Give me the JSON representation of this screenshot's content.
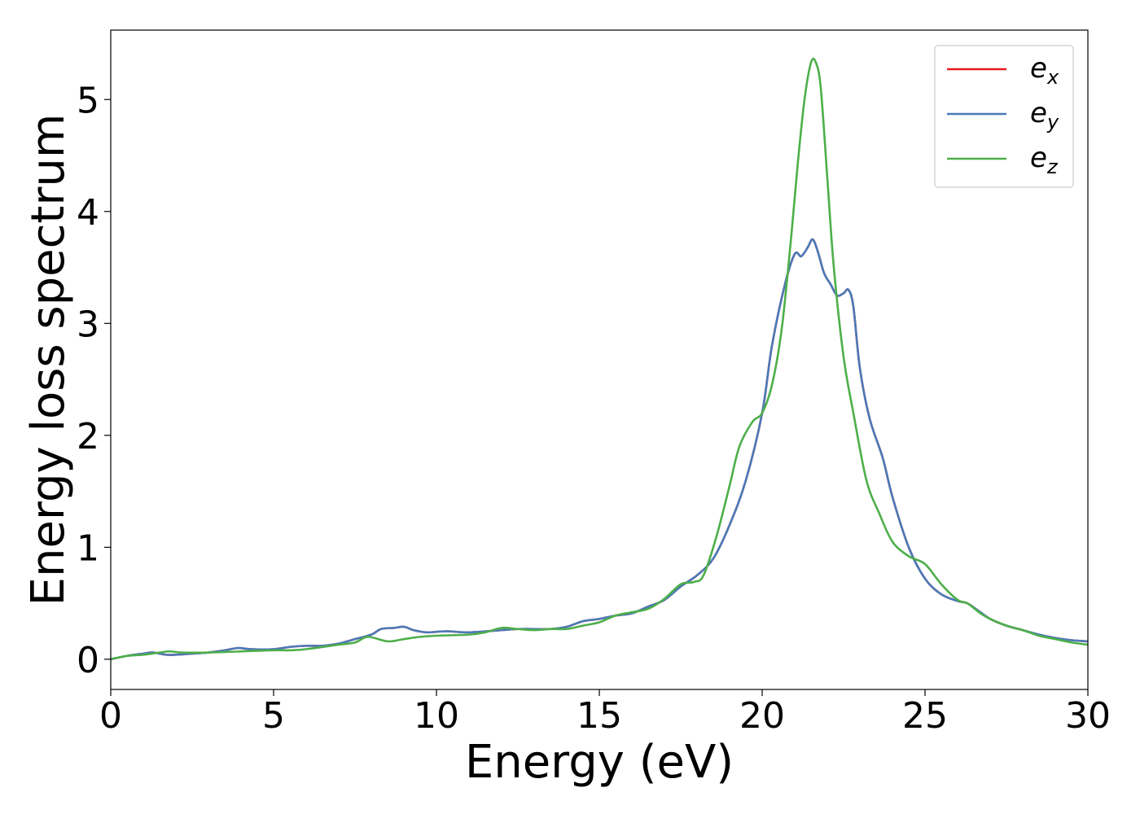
{
  "chart_data": {
    "type": "line",
    "xlabel": "Energy (eV)",
    "ylabel": "Energy loss spectrum",
    "xlim": [
      0,
      30
    ],
    "ylim": [
      -0.27,
      5.62
    ],
    "xticks": [
      "0",
      "5",
      "10",
      "15",
      "20",
      "25",
      "30"
    ],
    "xtick_values": [
      0,
      5,
      10,
      15,
      20,
      25,
      30
    ],
    "yticks": [
      "0",
      "1",
      "2",
      "3",
      "4",
      "5"
    ],
    "ytick_values": [
      0,
      1,
      2,
      3,
      4,
      5
    ],
    "grid": false,
    "legend_position": "top-right",
    "series": [
      {
        "name": "e_x",
        "legend_base": "e",
        "legend_sub": "x",
        "color": "#e41a1c",
        "x": [
          0,
          0.5,
          1,
          1.3,
          1.7,
          2,
          2.5,
          3,
          3.5,
          3.9,
          4.3,
          5,
          5.5,
          6,
          6.5,
          7,
          7.5,
          8,
          8.3,
          8.7,
          9,
          9.3,
          9.7,
          10.3,
          11,
          12,
          12.5,
          13,
          13.5,
          14,
          14.5,
          15,
          15.5,
          16,
          16.5,
          17,
          17.5,
          18,
          18.5,
          19,
          19.5,
          20,
          20.3,
          20.7,
          21,
          21.2,
          21.4,
          21.55,
          21.7,
          21.9,
          22.1,
          22.3,
          22.5,
          22.65,
          22.8,
          23,
          23.3,
          23.7,
          24,
          24.5,
          25,
          25.5,
          26,
          26.3,
          26.7,
          27,
          27.5,
          28,
          28.5,
          29,
          29.5,
          30
        ],
        "y": [
          0,
          0.03,
          0.05,
          0.06,
          0.04,
          0.04,
          0.05,
          0.06,
          0.08,
          0.1,
          0.09,
          0.09,
          0.11,
          0.12,
          0.12,
          0.14,
          0.18,
          0.22,
          0.27,
          0.28,
          0.29,
          0.26,
          0.24,
          0.25,
          0.24,
          0.26,
          0.27,
          0.27,
          0.27,
          0.29,
          0.34,
          0.36,
          0.39,
          0.41,
          0.47,
          0.53,
          0.65,
          0.75,
          0.9,
          1.2,
          1.6,
          2.2,
          2.8,
          3.35,
          3.62,
          3.6,
          3.68,
          3.75,
          3.65,
          3.45,
          3.35,
          3.25,
          3.27,
          3.3,
          3.15,
          2.6,
          2.15,
          1.8,
          1.45,
          1.0,
          0.72,
          0.58,
          0.52,
          0.5,
          0.42,
          0.36,
          0.3,
          0.26,
          0.22,
          0.19,
          0.17,
          0.16
        ]
      },
      {
        "name": "e_y",
        "legend_base": "e",
        "legend_sub": "y",
        "color": "#4a7ab8",
        "x": [
          0,
          0.5,
          1,
          1.3,
          1.7,
          2,
          2.5,
          3,
          3.5,
          3.9,
          4.3,
          5,
          5.5,
          6,
          6.5,
          7,
          7.5,
          8,
          8.3,
          8.7,
          9,
          9.3,
          9.7,
          10.3,
          11,
          12,
          12.5,
          13,
          13.5,
          14,
          14.5,
          15,
          15.5,
          16,
          16.5,
          17,
          17.5,
          18,
          18.5,
          19,
          19.5,
          20,
          20.3,
          20.7,
          21,
          21.2,
          21.4,
          21.55,
          21.7,
          21.9,
          22.1,
          22.3,
          22.5,
          22.65,
          22.8,
          23,
          23.3,
          23.7,
          24,
          24.5,
          25,
          25.5,
          26,
          26.3,
          26.7,
          27,
          27.5,
          28,
          28.5,
          29,
          29.5,
          30
        ],
        "y": [
          0,
          0.03,
          0.05,
          0.06,
          0.04,
          0.04,
          0.05,
          0.06,
          0.08,
          0.1,
          0.09,
          0.09,
          0.11,
          0.12,
          0.12,
          0.14,
          0.18,
          0.22,
          0.27,
          0.28,
          0.29,
          0.26,
          0.24,
          0.25,
          0.24,
          0.26,
          0.27,
          0.27,
          0.27,
          0.29,
          0.34,
          0.36,
          0.39,
          0.41,
          0.47,
          0.53,
          0.65,
          0.75,
          0.9,
          1.2,
          1.6,
          2.2,
          2.8,
          3.35,
          3.62,
          3.6,
          3.68,
          3.75,
          3.65,
          3.45,
          3.35,
          3.25,
          3.27,
          3.3,
          3.15,
          2.6,
          2.15,
          1.8,
          1.45,
          1.0,
          0.72,
          0.58,
          0.52,
          0.5,
          0.42,
          0.36,
          0.3,
          0.26,
          0.22,
          0.19,
          0.17,
          0.16
        ]
      },
      {
        "name": "e_z",
        "legend_base": "e",
        "legend_sub": "z",
        "color": "#4daf4a",
        "x": [
          0,
          0.5,
          1,
          1.5,
          1.8,
          2.2,
          3,
          4,
          5,
          5.5,
          6,
          7,
          7.5,
          7.9,
          8.5,
          9,
          9.5,
          10,
          11,
          11.5,
          12,
          12.5,
          13,
          13.5,
          14,
          14.5,
          15,
          15.5,
          16,
          16.5,
          17,
          17.5,
          17.9,
          18.2,
          18.6,
          19,
          19.3,
          19.7,
          20,
          20.3,
          20.6,
          20.9,
          21.1,
          21.3,
          21.5,
          21.65,
          21.8,
          22,
          22.2,
          22.5,
          22.8,
          23.2,
          23.6,
          24,
          24.5,
          25,
          25.5,
          26,
          26.3,
          26.7,
          27,
          27.5,
          28,
          28.5,
          29,
          29.5,
          30
        ],
        "y": [
          0,
          0.03,
          0.04,
          0.06,
          0.07,
          0.06,
          0.06,
          0.07,
          0.08,
          0.08,
          0.09,
          0.13,
          0.15,
          0.2,
          0.16,
          0.18,
          0.2,
          0.21,
          0.22,
          0.24,
          0.28,
          0.27,
          0.26,
          0.27,
          0.27,
          0.3,
          0.33,
          0.39,
          0.42,
          0.45,
          0.54,
          0.67,
          0.69,
          0.75,
          1.1,
          1.55,
          1.9,
          2.12,
          2.2,
          2.45,
          2.95,
          3.8,
          4.45,
          5.0,
          5.33,
          5.33,
          5.1,
          4.3,
          3.5,
          2.7,
          2.2,
          1.6,
          1.3,
          1.05,
          0.92,
          0.85,
          0.67,
          0.53,
          0.5,
          0.41,
          0.36,
          0.3,
          0.26,
          0.21,
          0.18,
          0.15,
          0.13
        ]
      }
    ]
  }
}
